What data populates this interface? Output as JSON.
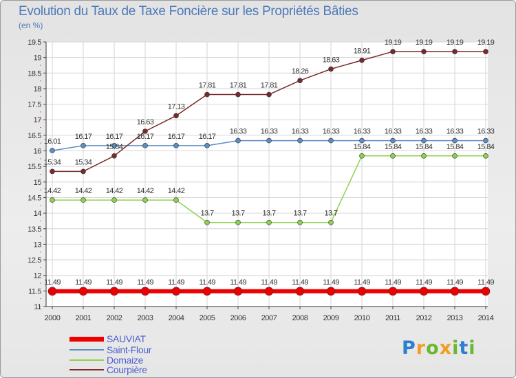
{
  "logo": {
    "text": "Proxiti",
    "colors": [
      "#2a7fd0",
      "#f39c1f",
      "#69b630",
      "#f39c1f",
      "#69b630",
      "#2a7fd0",
      "#69b630"
    ]
  },
  "chart_data": {
    "type": "line",
    "title": "Evolution du Taux de Taxe Foncière sur les Propriétés Bâties",
    "subtitle": "(en %)",
    "xlabel": "",
    "ylabel": "",
    "x": [
      "2000",
      "2001",
      "2002",
      "2003",
      "2004",
      "2005",
      "2006",
      "2007",
      "2008",
      "2009",
      "2010",
      "2011",
      "2012",
      "2013",
      "2014"
    ],
    "ylim": [
      11,
      19.5
    ],
    "yticks": [
      "11",
      "11.5",
      "12",
      "12.5",
      "13",
      "13.5",
      "14",
      "14.5",
      "15",
      "15.5",
      "16",
      "16.5",
      "17",
      "17.5",
      "18",
      "18.5",
      "19",
      "19.5"
    ],
    "grid": true,
    "legend_position": "bottom-left",
    "series": [
      {
        "name": "SAUVIAT",
        "color": "#ee0000",
        "values": [
          11.49,
          11.49,
          11.49,
          11.49,
          11.49,
          11.49,
          11.49,
          11.49,
          11.49,
          11.49,
          11.49,
          11.49,
          11.49,
          11.49,
          11.49
        ],
        "labels": [
          "11.49",
          "11.49",
          "11.49",
          "11.49",
          "11.49",
          "11.49",
          "11.49",
          "11.49",
          "11.49",
          "11.49",
          "11.49",
          "11.49",
          "11.49",
          "11.49",
          "11.49"
        ]
      },
      {
        "name": "Saint-Flour",
        "color": "#5b8fc4",
        "values": [
          16.01,
          16.17,
          16.17,
          16.17,
          16.17,
          16.17,
          16.33,
          16.33,
          16.33,
          16.33,
          16.33,
          16.33,
          16.33,
          16.33,
          16.33
        ],
        "labels": [
          "16.01",
          "16.17",
          "16.17",
          "16.17",
          "16.17",
          "16.17",
          "16.33",
          "16.33",
          "16.33",
          "16.33",
          "16.33",
          "16.33",
          "16.33",
          "16.33",
          "16.33"
        ]
      },
      {
        "name": "Domaize",
        "color": "#8fd14f",
        "values": [
          14.42,
          14.42,
          14.42,
          14.42,
          14.42,
          13.7,
          13.7,
          13.7,
          13.7,
          13.7,
          15.84,
          15.84,
          15.84,
          15.84,
          15.84
        ],
        "labels": [
          "14.42",
          "14.42",
          "14.42",
          "14.42",
          "14.42",
          "13.7",
          "13.7",
          "13.7",
          "13.7",
          "13.7",
          "15.84",
          "15.84",
          "15.84",
          "15.84",
          "15.84"
        ]
      },
      {
        "name": "Courpière",
        "color": "#7a2a2a",
        "values": [
          15.34,
          15.34,
          15.84,
          16.63,
          17.13,
          17.81,
          17.81,
          17.81,
          18.26,
          18.63,
          18.91,
          19.19,
          19.19,
          19.19,
          19.19
        ],
        "labels": [
          "15.34",
          "15.34",
          "15.84",
          "16.63",
          "17.13",
          "17.81",
          "17.81",
          "17.81",
          "18.26",
          "18.63",
          "18.91",
          "19.19",
          "19.19",
          "19.19",
          "19.19"
        ]
      }
    ]
  }
}
